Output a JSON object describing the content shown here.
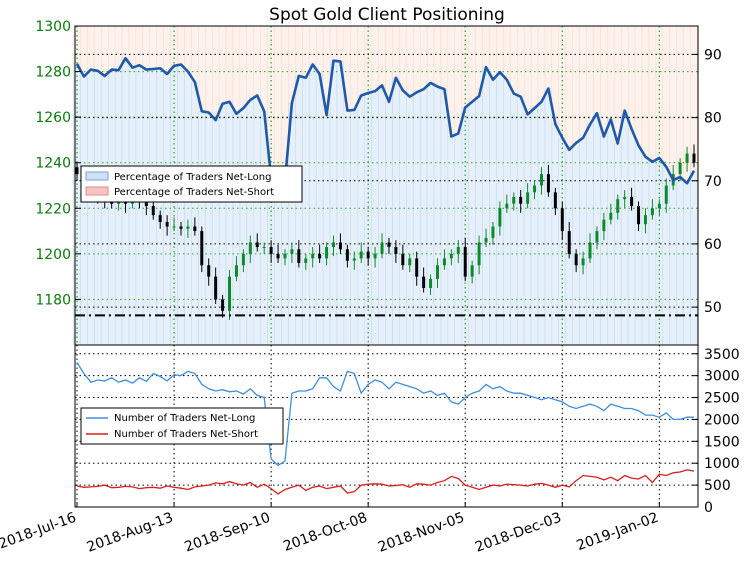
{
  "chart_data": [
    {
      "type": "candlestick+line",
      "title": "Spot Gold Client Positioning",
      "x_ticks": [
        "2018-Jul-16",
        "2018-Aug-13",
        "2018-Sep-10",
        "2018-Oct-08",
        "2018-Nov-05",
        "2018-Dec-03",
        "2019-Jan-02"
      ],
      "y_left": {
        "range": [
          1160,
          1300
        ],
        "ticks": [
          1180,
          1200,
          1220,
          1240,
          1260,
          1280,
          1300
        ]
      },
      "y_right": {
        "range": [
          44,
          94.5
        ],
        "ticks": [
          50,
          60,
          70,
          80,
          90
        ]
      },
      "grid": true,
      "legend": {
        "position": "center-left",
        "entries": [
          "Percentage of Traders Net-Long",
          "Percentage of Traders Net-Short"
        ]
      },
      "series_long_pct": {
        "name": "Percentage of Traders Net-Long",
        "x": [
          0,
          2,
          4,
          6,
          8,
          10,
          12,
          14,
          16,
          18,
          20,
          22,
          24,
          26,
          28,
          30,
          32,
          34,
          36,
          38,
          40,
          42,
          44,
          46,
          48,
          50,
          52,
          54,
          56,
          58,
          60,
          62,
          64,
          66,
          68,
          70,
          72,
          74,
          76,
          78,
          80,
          82,
          84,
          86,
          88,
          90,
          92,
          94,
          96,
          98,
          100,
          102,
          104,
          106,
          108,
          110,
          112,
          114,
          116,
          118,
          120,
          122,
          124,
          126,
          128,
          130,
          132,
          134,
          136,
          138,
          140,
          142,
          144,
          146,
          148,
          150,
          152,
          154,
          156,
          158,
          160,
          162,
          164,
          166,
          168,
          170,
          172,
          174,
          176,
          178
        ],
        "values": [
          88.5,
          86.5,
          87.6,
          87.4,
          86.6,
          87.6,
          87.5,
          89.4,
          87.9,
          88.3,
          87.6,
          87.7,
          87.8,
          86.9,
          88.2,
          88.4,
          87.3,
          85.6,
          81.0,
          80.8,
          79.6,
          82.2,
          82.5,
          80.6,
          81.5,
          82.8,
          83.5,
          81.0,
          70.5,
          71.3,
          70.0,
          82.3,
          86.6,
          86.3,
          88.4,
          86.9,
          80.4,
          89.0,
          88.9,
          81.1,
          81.2,
          83.5,
          83.9,
          84.2,
          85.1,
          82.5,
          86.3,
          84.3,
          83.3,
          84.0,
          84.5,
          85.5,
          84.9,
          84.5,
          77.0,
          77.5,
          81.6,
          82.5,
          83.4,
          88.0,
          86.0,
          87.2,
          86.0,
          83.8,
          83.3,
          80.5,
          81.5,
          82.5,
          84.6,
          79.0,
          76.8,
          74.9,
          76.0,
          76.8,
          78.9,
          80.7,
          77.0,
          79.7,
          75.9,
          81.1,
          78.2,
          75.6,
          73.8,
          73.0,
          73.6,
          72.2,
          70.1,
          70.6,
          69.6,
          71.6
        ],
        "color": "#1f5aa8"
      },
      "series_ohlc": {
        "name": "Spot Gold",
        "x_start": 0,
        "x_step": 2,
        "close": [
          1235,
          1228,
          1228,
          1225,
          1224,
          1222,
          1225,
          1222,
          1225,
          1223,
          1221,
          1217,
          1214,
          1212,
          1212,
          1211,
          1212,
          1210,
          1195,
          1190,
          1180,
          1175,
          1190,
          1195,
          1200,
          1205,
          1203,
          1203,
          1200,
          1198,
          1200,
          1202,
          1196,
          1198,
          1200,
          1198,
          1203,
          1205,
          1202,
          1197,
          1198,
          1201,
          1198,
          1200,
          1205,
          1203,
          1200,
          1195,
          1198,
          1190,
          1185,
          1189,
          1195,
          1198,
          1200,
          1203,
          1190,
          1195,
          1205,
          1207,
          1212,
          1220,
          1222,
          1225,
          1222,
          1227,
          1230,
          1235,
          1227,
          1220,
          1210,
          1200,
          1195,
          1198,
          1205,
          1210,
          1215,
          1218,
          1224,
          1225,
          1221,
          1213,
          1217,
          1220,
          1222,
          1230,
          1235,
          1240,
          1244,
          1240
        ],
        "color_up": "#0b8a2a",
        "color_down": "#000000"
      },
      "horizontal_line": {
        "y": 1173,
        "style": "dash-dot"
      }
    },
    {
      "type": "line",
      "x_ticks": [
        "2018-Jul-16",
        "2018-Aug-13",
        "2018-Sep-10",
        "2018-Oct-08",
        "2018-Nov-05",
        "2018-Dec-03",
        "2019-Jan-02"
      ],
      "y_right": {
        "range": [
          0,
          3700
        ],
        "ticks": [
          0,
          500,
          1000,
          1500,
          2000,
          2500,
          3000,
          3500
        ]
      },
      "grid": true,
      "legend": {
        "position": "center-left",
        "entries": [
          "Number of Traders Net-Long",
          "Number of Traders Net-Short"
        ]
      },
      "series": [
        {
          "name": "Number of Traders Net-Long",
          "color": "#3d8fe0",
          "x": [
            0,
            2,
            4,
            6,
            8,
            10,
            12,
            14,
            16,
            18,
            20,
            22,
            24,
            26,
            28,
            30,
            32,
            34,
            36,
            38,
            40,
            42,
            44,
            46,
            48,
            50,
            52,
            54,
            56,
            58,
            60,
            62,
            64,
            66,
            68,
            70,
            72,
            74,
            76,
            78,
            80,
            82,
            84,
            86,
            88,
            90,
            92,
            94,
            96,
            98,
            100,
            102,
            104,
            106,
            108,
            110,
            112,
            114,
            116,
            118,
            120,
            122,
            124,
            126,
            128,
            130,
            132,
            134,
            136,
            138,
            140,
            142,
            144,
            146,
            148,
            150,
            152,
            154,
            156,
            158,
            160,
            162,
            164,
            166,
            168,
            170,
            172,
            174,
            176,
            178
          ],
          "values": [
            3300,
            3050,
            2850,
            2900,
            2880,
            2950,
            2850,
            2900,
            2830,
            2950,
            2870,
            3050,
            2980,
            2880,
            3020,
            3000,
            3100,
            3050,
            2800,
            2700,
            2650,
            2680,
            2630,
            2650,
            2580,
            2700,
            2550,
            2500,
            1100,
            950,
            1050,
            2600,
            2650,
            2650,
            2700,
            2950,
            2950,
            2750,
            2650,
            3100,
            3050,
            2600,
            2800,
            2900,
            2850,
            2700,
            2850,
            2800,
            2750,
            2700,
            2600,
            2650,
            2550,
            2600,
            2400,
            2350,
            2500,
            2600,
            2650,
            2800,
            2700,
            2750,
            2650,
            2600,
            2600,
            2550,
            2500,
            2450,
            2500,
            2450,
            2400,
            2300,
            2250,
            2300,
            2350,
            2300,
            2200,
            2350,
            2300,
            2250,
            2250,
            2200,
            2100,
            2100,
            2050,
            2150,
            2000,
            2000,
            2050,
            2050
          ]
        },
        {
          "name": "Number of Traders Net-Short",
          "color": "#d91f1f",
          "x": [
            0,
            2,
            4,
            6,
            8,
            10,
            12,
            14,
            16,
            18,
            20,
            22,
            24,
            26,
            28,
            30,
            32,
            34,
            36,
            38,
            40,
            42,
            44,
            46,
            48,
            50,
            52,
            54,
            56,
            58,
            60,
            62,
            64,
            66,
            68,
            70,
            72,
            74,
            76,
            78,
            80,
            82,
            84,
            86,
            88,
            90,
            92,
            94,
            96,
            98,
            100,
            102,
            104,
            106,
            108,
            110,
            112,
            114,
            116,
            118,
            120,
            122,
            124,
            126,
            128,
            130,
            132,
            134,
            136,
            138,
            140,
            142,
            144,
            146,
            148,
            150,
            152,
            154,
            156,
            158,
            160,
            162,
            164,
            166,
            168,
            170,
            172,
            174,
            176,
            178
          ],
          "values": [
            480,
            450,
            460,
            470,
            500,
            440,
            450,
            470,
            460,
            420,
            440,
            450,
            430,
            480,
            450,
            430,
            400,
            460,
            480,
            500,
            550,
            530,
            580,
            530,
            500,
            560,
            450,
            520,
            420,
            300,
            400,
            450,
            500,
            380,
            450,
            480,
            420,
            450,
            480,
            320,
            350,
            500,
            520,
            530,
            520,
            480,
            490,
            510,
            450,
            530,
            520,
            500,
            560,
            600,
            700,
            650,
            500,
            450,
            400,
            450,
            500,
            480,
            520,
            510,
            500,
            480,
            520,
            540,
            500,
            450,
            500,
            460,
            600,
            720,
            700,
            680,
            620,
            680,
            600,
            720,
            660,
            640,
            720,
            560,
            750,
            720,
            780,
            800,
            850,
            820
          ]
        }
      ]
    }
  ]
}
